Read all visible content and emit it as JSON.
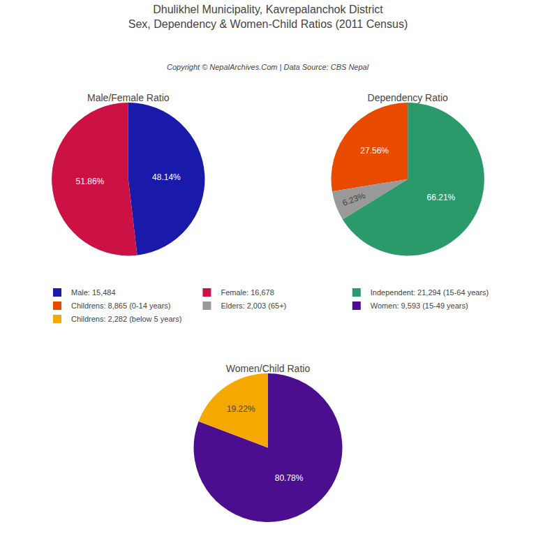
{
  "title": "Dhulikhel Municipality, Kavrepalanchok District",
  "subtitle": "Sex, Dependency & Women-Child Ratios (2011 Census)",
  "annotations": [
    "Copyright © NepalArchives.Com | Data Source: CBS Nepal"
  ],
  "chart_data": [
    {
      "type": "pie",
      "title": "Male/Female Ratio",
      "categories": [
        "Male: 15,484",
        "Female: 16,678"
      ],
      "values": [
        48.14,
        51.86
      ],
      "value_labels": [
        "48.14%",
        "51.86%"
      ],
      "colors": [
        "#1a1aaa",
        "#cc1144"
      ],
      "data_labels": true,
      "legend": "center"
    },
    {
      "type": "pie",
      "title": "Dependency Ratio",
      "categories": [
        "Independent: 21,294 (15-64 years)",
        "Childrens: 8,865 (0-14 years)",
        "Elders: 2,003 (65+)"
      ],
      "values": [
        66.21,
        27.56,
        6.23
      ],
      "value_labels": [
        "66.21%",
        "27.56%",
        "6.23%"
      ],
      "colors": [
        "#2a9a6a",
        "#e84a00",
        "#999999"
      ],
      "data_labels": true,
      "legend": "center"
    },
    {
      "type": "pie",
      "title": "Women/Child Ratio",
      "categories": [
        "Women: 9,593 (15-49 years)",
        "Childrens: 2,282 (below 5 years)"
      ],
      "values": [
        80.78,
        19.22
      ],
      "value_labels": [
        "80.78%",
        "19.22%"
      ],
      "colors": [
        "#4a0e8f",
        "#f5a800"
      ],
      "data_labels": true,
      "legend": "center"
    }
  ]
}
